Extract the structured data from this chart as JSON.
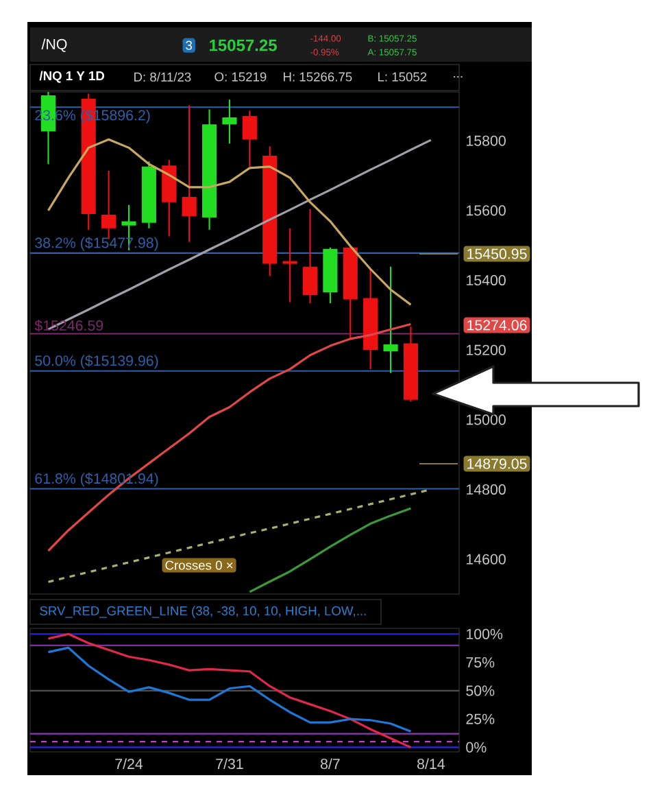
{
  "chart_data": [
    {
      "type": "candlestick",
      "title": "/NQ 1 Y 1D",
      "annotations": [
        "/NQ",
        "3",
        "15057.25",
        "-144.00",
        "-0.95%",
        "B: 15057.25",
        "A: 15057.75",
        "D: 8/11/23",
        "O: 15219",
        "H: 15266.75",
        "L: 15052",
        "...",
        "Crosses 0 ×",
        "15450.95",
        "15274.06",
        "14879.05"
      ],
      "categories": [
        null,
        null,
        null,
        null,
        null,
        null,
        null,
        null,
        null,
        null,
        null,
        null,
        null,
        null,
        null,
        null,
        null,
        null,
        null,
        null
      ],
      "ohlc": [
        [
          15827,
          15940,
          15733,
          15930
        ],
        null,
        [
          15921,
          15935,
          15545,
          15590
        ],
        [
          15588,
          15714,
          15518,
          15549
        ],
        [
          15557,
          15616,
          15486,
          15569
        ],
        [
          15565,
          15741,
          15549,
          15726
        ],
        [
          15729,
          15745,
          15526,
          15624
        ],
        [
          15639,
          15902,
          15510,
          15584
        ],
        [
          15580,
          15890,
          15545,
          15847
        ],
        [
          15847,
          15918,
          15792,
          15867
        ],
        [
          15871,
          15886,
          15726,
          15804
        ],
        [
          15757,
          15784,
          15412,
          15447
        ],
        [
          15455,
          15549,
          15337,
          15447
        ],
        [
          15439,
          15604,
          15334,
          15357
        ],
        [
          15365,
          15494,
          15334,
          15490
        ],
        [
          15494,
          15498,
          15232,
          15345
        ],
        [
          15349,
          15432,
          15145,
          15200
        ],
        [
          15196,
          15439,
          15134,
          15216
        ],
        [
          15219,
          15266.75,
          15052,
          15057.25
        ],
        null
      ],
      "colors": [
        "#22dd22",
        null,
        "#ee1111",
        "#ee1111",
        "#22dd22",
        "#22dd22",
        "#ee1111",
        "#ee1111",
        "#22dd22",
        "#22dd22",
        "#ee1111",
        "#ee1111",
        "#ee1111",
        "#ee1111",
        "#22dd22",
        "#ee1111",
        "#ee1111",
        "#22dd22",
        "#ee1111",
        null
      ],
      "series": [
        {
          "type": "line",
          "color": "#a0a0a8",
          "values": [
            15259,
            15288,
            15316,
            15345,
            15373,
            15402,
            15431,
            15459,
            15488,
            15516,
            15545,
            15574,
            15602,
            15631,
            15659,
            15688,
            15717,
            15745,
            15774,
            15802
          ]
        },
        {
          "type": "line",
          "color": "#a8b070",
          "line_style": "dashed",
          "values": [
            14535,
            14549,
            14563,
            14577,
            14591,
            14605,
            14619,
            14633,
            14647,
            14661,
            14675,
            14688,
            14702,
            14716,
            14730,
            14744,
            14758,
            14772,
            14786,
            14800
          ]
        },
        {
          "type": "line",
          "color": "#3a9a3a",
          "values": [
            null,
            null,
            null,
            null,
            null,
            null,
            null,
            null,
            null,
            null,
            14506,
            14536,
            14565,
            14600,
            14636,
            14670,
            14702,
            14725,
            14746,
            null
          ]
        },
        {
          "type": "line",
          "color": "#e04848",
          "values": [
            14624,
            14683,
            14734,
            14785,
            14832,
            14875,
            14918,
            14961,
            15008,
            15036,
            15079,
            15118,
            15145,
            15185,
            15212,
            15232,
            15243,
            15259,
            15274.06,
            null
          ]
        },
        {
          "type": "line",
          "color": "#c8a860",
          "values": [
            15600,
            15694,
            15780,
            15804,
            15780,
            15733,
            15702,
            15667,
            15667,
            15682,
            15722,
            15726,
            15694,
            15624,
            15569,
            15498,
            15432,
            15373,
            15330,
            null
          ]
        }
      ],
      "ylim": [
        14500,
        15940
      ],
      "yticks": [
        14600,
        14800,
        15000,
        15200,
        15400,
        15600,
        15800
      ],
      "ref_lines": [
        {
          "axis": "y",
          "value": 15896.2,
          "label": "23.6%  ($15896.2)",
          "color": "#2f5fa8"
        },
        {
          "axis": "y",
          "value": 15477.98,
          "label": "38.2%  ($15477.98)",
          "color": "#2f5fa8"
        },
        {
          "axis": "y",
          "value": 15246.59,
          "label": "$15246.59",
          "color": "#7a2a6a"
        },
        {
          "axis": "y",
          "value": 15139.96,
          "label": "50.0%  ($15139.96)",
          "color": "#2f5fa8"
        },
        {
          "axis": "y",
          "value": 14801.94,
          "label": "61.8%  ($14801.94)",
          "color": "#2f5fa8"
        }
      ],
      "tick_labels": "y"
    },
    {
      "type": "line",
      "title": "SRV_RED_GREEN_LINE (38, -38, 10, 10, HIGH, LOW,...",
      "categories": [
        null,
        null,
        null,
        null,
        "7/24",
        null,
        null,
        null,
        null,
        "7/31",
        null,
        null,
        null,
        null,
        "8/7",
        null,
        null,
        null,
        null,
        "8/14"
      ],
      "series": [
        {
          "color": "#e0284a",
          "values": [
            96,
            100,
            92,
            86,
            80,
            77,
            73,
            68,
            69,
            68,
            67,
            54,
            44,
            38,
            32,
            25,
            16,
            8,
            0,
            null
          ]
        },
        {
          "color": "#1e78d8",
          "values": [
            84,
            88,
            72,
            60,
            49,
            53,
            48,
            42,
            42,
            52,
            54,
            42,
            31,
            22,
            22,
            25,
            24,
            21,
            14,
            null
          ]
        }
      ],
      "ylim": [
        -4,
        105
      ],
      "yticks": [
        {
          "value": 0,
          "label": "0%"
        },
        {
          "value": 25,
          "label": "25%"
        },
        {
          "value": 50,
          "label": "50%"
        },
        {
          "value": 75,
          "label": "75%"
        },
        {
          "value": 100,
          "label": "100%"
        }
      ],
      "ref_lines": [
        {
          "axis": "y",
          "value": 100,
          "color": "#2a2ae0"
        },
        {
          "axis": "y",
          "value": 90,
          "color": "#8a3ab0"
        },
        {
          "axis": "y",
          "value": 50,
          "color": "#505050"
        },
        {
          "axis": "y",
          "value": 12,
          "color": "#8a3ab0"
        },
        {
          "axis": "y",
          "value": 5,
          "color": "#c040c0",
          "line_style": "dashed"
        },
        {
          "axis": "y",
          "value": 0,
          "color": "#2a2ae0"
        }
      ]
    }
  ]
}
